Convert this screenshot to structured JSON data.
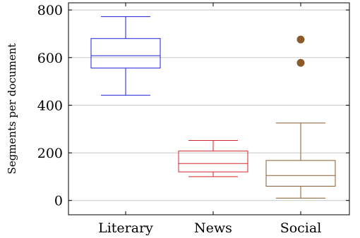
{
  "chart_data": {
    "type": "box",
    "title": "",
    "xlabel": "",
    "ylabel": "Segments per document",
    "categories": [
      "Literary",
      "News",
      "Social"
    ],
    "ylim": [
      -60,
      830
    ],
    "yticks": [
      0,
      200,
      400,
      600,
      800
    ],
    "ytick_labels": [
      "0",
      "200",
      "400",
      "600",
      "800"
    ],
    "grid": "y",
    "legend": "none",
    "series": [
      {
        "category": "Literary",
        "color": "#1f1fd6",
        "whisker_low": 442,
        "q1": 556,
        "median": 608,
        "q3": 680,
        "whisker_high": 772,
        "outliers": []
      },
      {
        "category": "News",
        "color": "#d62728",
        "whisker_low": 100,
        "q1": 120,
        "median": 155,
        "q3": 208,
        "whisker_high": 252,
        "outliers": []
      },
      {
        "category": "Social",
        "color": "#8b5a2b",
        "whisker_low": 10,
        "q1": 60,
        "median": 105,
        "q3": 168,
        "whisker_high": 325,
        "outliers": [
          578,
          676
        ]
      }
    ]
  }
}
